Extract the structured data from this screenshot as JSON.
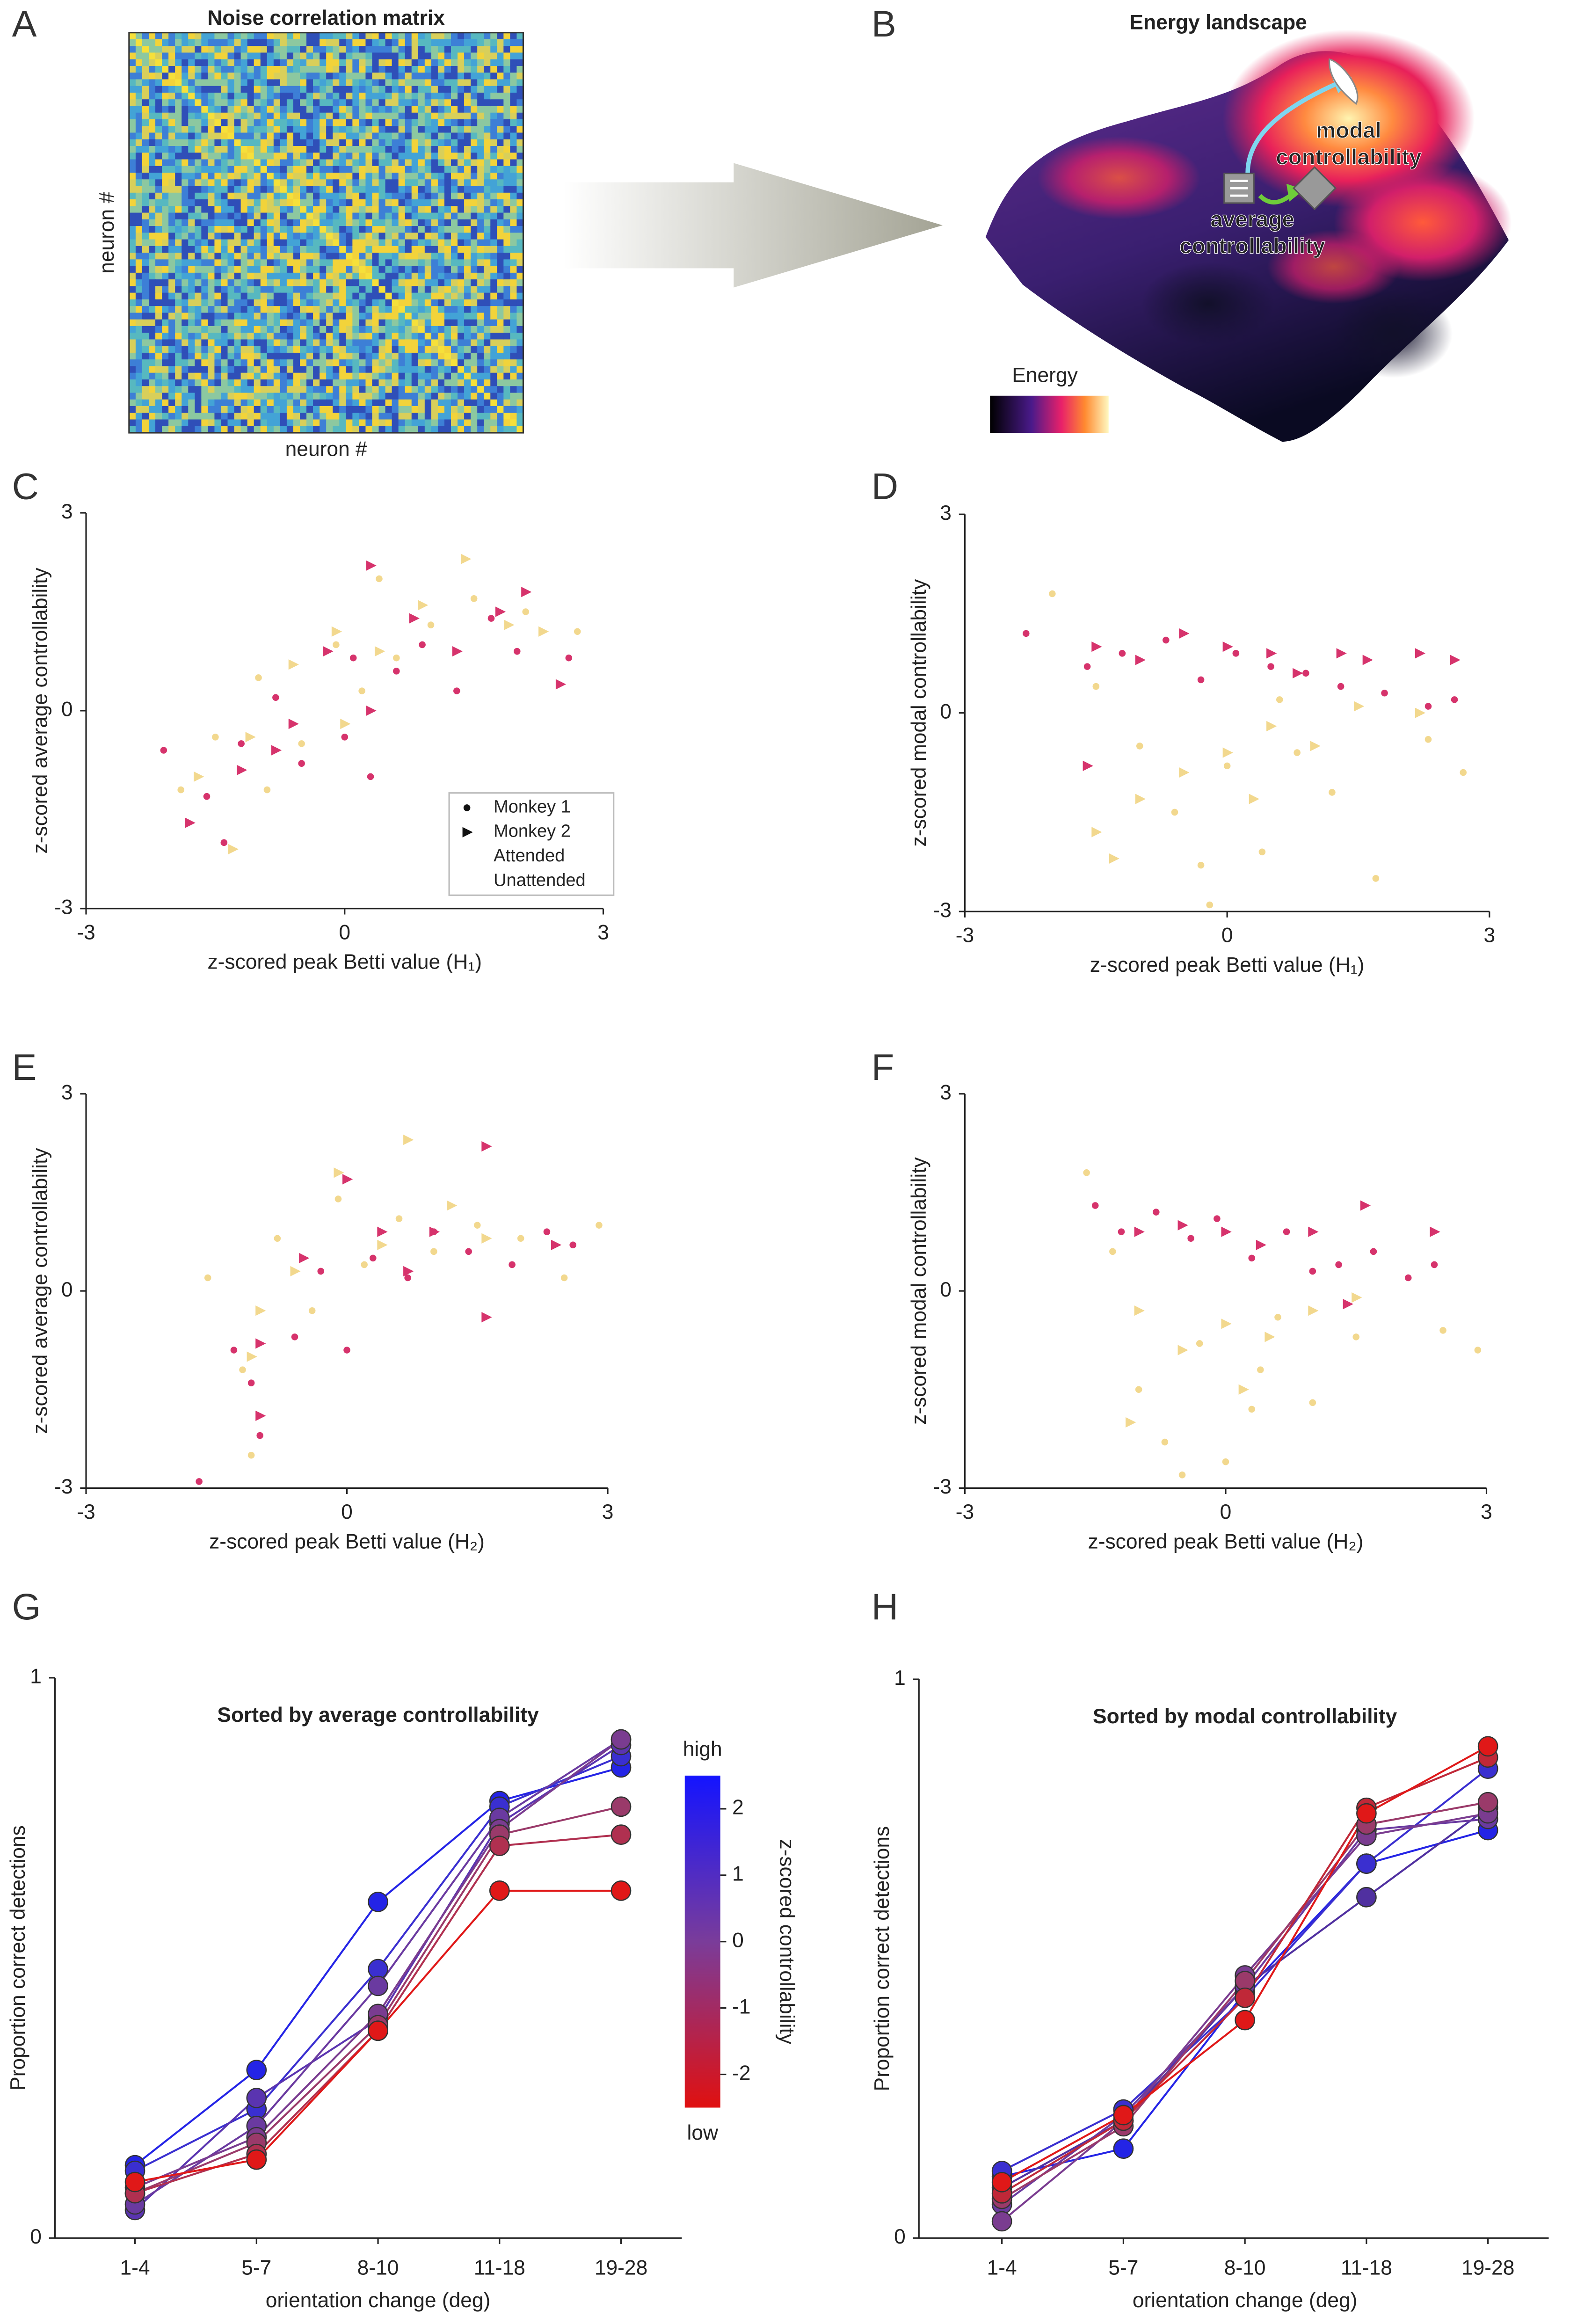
{
  "chart_data": [
    {
      "type": "heatmap",
      "panel": "A",
      "title": "Noise correlation matrix",
      "xlabel": "neuron #",
      "ylabel": "neuron #"
    },
    {
      "type": "illustration",
      "panel": "B",
      "title": "Energy landscape",
      "annotations": [
        {
          "text": "modal",
          "color": "#a9b9f2"
        },
        {
          "text": "controllability",
          "color": "#a9b9f2"
        },
        {
          "text": "average",
          "color": "#74d13a"
        },
        {
          "text": "controllability",
          "color": "#74d13a"
        }
      ],
      "colorbar_label": "Energy"
    },
    {
      "type": "scatter",
      "panel": "C",
      "xlabel": "z-scored peak Betti value (H₁)",
      "ylabel": "z-scored average controllability",
      "ylabel_color": "#6ecc3a",
      "xlim": [
        -3,
        3
      ],
      "ylim": [
        -3,
        3
      ],
      "xticks": [
        -3,
        0,
        3
      ],
      "yticks": [
        -3,
        0,
        3
      ],
      "legend": {
        "markers": [
          {
            "name": "Monkey 1",
            "marker": "circle"
          },
          {
            "name": "Monkey 2",
            "marker": "triangle"
          }
        ],
        "conditions": [
          {
            "name": "Attended",
            "color": "#d6336c"
          },
          {
            "name": "Unattended",
            "color": "#f2d88e"
          }
        ]
      },
      "series": [
        {
          "marker": "circle",
          "color": "#f2d88e",
          "x": [
            -1.9,
            -1.5,
            -1.0,
            -0.5,
            -0.1,
            0.2,
            0.6,
            1.0,
            1.5,
            2.1,
            2.7,
            -0.9,
            0.4
          ],
          "values": [
            -1.2,
            -0.4,
            0.5,
            -0.5,
            1.0,
            0.3,
            0.8,
            1.3,
            1.7,
            1.5,
            1.2,
            -1.2,
            2.0
          ]
        },
        {
          "marker": "triangle",
          "color": "#f2d88e",
          "x": [
            -1.7,
            -1.1,
            -0.6,
            -0.1,
            0.4,
            0.9,
            1.4,
            1.9,
            2.3,
            -1.3,
            0.0
          ],
          "values": [
            -1.0,
            -0.4,
            0.7,
            1.2,
            0.9,
            1.6,
            2.3,
            1.3,
            1.2,
            -2.1,
            -0.2
          ]
        },
        {
          "marker": "circle",
          "color": "#d6336c",
          "x": [
            -2.1,
            -1.6,
            -1.2,
            -0.8,
            -0.5,
            0.1,
            0.3,
            0.6,
            0.9,
            1.3,
            1.7,
            2.0,
            2.6,
            -1.4,
            0.0
          ],
          "values": [
            -0.6,
            -1.3,
            -0.5,
            0.2,
            -0.8,
            0.8,
            -1.0,
            0.6,
            1.0,
            0.3,
            1.4,
            0.9,
            0.8,
            -2.0,
            -0.4
          ]
        },
        {
          "marker": "triangle",
          "color": "#d6336c",
          "x": [
            -1.8,
            -1.2,
            -0.6,
            -0.2,
            0.3,
            0.3,
            0.8,
            1.3,
            1.8,
            2.1,
            2.5,
            -0.8
          ],
          "values": [
            -1.7,
            -0.9,
            -0.2,
            0.9,
            2.2,
            0.0,
            1.4,
            0.9,
            1.5,
            1.8,
            0.4,
            -0.6
          ]
        }
      ]
    },
    {
      "type": "scatter",
      "panel": "D",
      "xlabel": "z-scored peak Betti value (H₁)",
      "ylabel": "z-scored modal controllability",
      "ylabel_color": "#86dde8",
      "xlim": [
        -3,
        3
      ],
      "ylim": [
        -3,
        3
      ],
      "xticks": [
        -3,
        0,
        3
      ],
      "yticks": [
        -3,
        0,
        3
      ],
      "series": [
        {
          "marker": "circle",
          "color": "#f2d88e",
          "x": [
            -2.0,
            -1.5,
            -1.0,
            -0.6,
            -0.3,
            0.0,
            0.4,
            0.8,
            1.2,
            1.7,
            2.3,
            2.7,
            -0.2,
            0.6
          ],
          "values": [
            1.8,
            0.4,
            -0.5,
            -1.5,
            -2.3,
            -0.8,
            -2.1,
            -0.6,
            -1.2,
            -2.5,
            -0.4,
            -0.9,
            -2.9,
            0.2
          ]
        },
        {
          "marker": "triangle",
          "color": "#f2d88e",
          "x": [
            -1.5,
            -1.0,
            -0.5,
            0.0,
            0.5,
            1.0,
            1.5,
            2.2,
            -1.3,
            0.3
          ],
          "values": [
            -1.8,
            -1.3,
            -0.9,
            -0.6,
            -0.2,
            -0.5,
            0.1,
            0.0,
            -2.2,
            -1.3
          ]
        },
        {
          "marker": "circle",
          "color": "#d6336c",
          "x": [
            -2.3,
            -1.6,
            -1.2,
            -0.7,
            -0.3,
            0.1,
            0.5,
            0.9,
            1.3,
            1.8,
            2.3,
            2.6
          ],
          "values": [
            1.2,
            0.7,
            0.9,
            1.1,
            0.5,
            0.9,
            0.7,
            0.6,
            0.4,
            0.3,
            0.1,
            0.2
          ]
        },
        {
          "marker": "triangle",
          "color": "#d6336c",
          "x": [
            -1.5,
            -1.0,
            -0.5,
            0.0,
            0.5,
            0.8,
            1.3,
            1.6,
            2.2,
            2.6,
            -1.6
          ],
          "values": [
            1.0,
            0.8,
            1.2,
            1.0,
            0.9,
            0.6,
            0.9,
            0.8,
            0.9,
            0.8,
            -0.8
          ]
        }
      ]
    },
    {
      "type": "scatter",
      "panel": "E",
      "xlabel": "z-scored peak Betti value (H₂)",
      "ylabel": "z-scored average controllability",
      "ylabel_color": "#6ecc3a",
      "xlim": [
        -3,
        3
      ],
      "ylim": [
        -3,
        3
      ],
      "xticks": [
        -3,
        0,
        3
      ],
      "yticks": [
        -3,
        0,
        3
      ],
      "series": [
        {
          "marker": "circle",
          "color": "#f2d88e",
          "x": [
            -1.6,
            -1.2,
            -0.8,
            -0.4,
            -0.1,
            0.2,
            0.6,
            1.0,
            1.5,
            2.0,
            2.5,
            2.9,
            -1.1
          ],
          "values": [
            0.2,
            -1.2,
            0.8,
            -0.3,
            1.4,
            0.4,
            1.1,
            0.6,
            1.0,
            0.8,
            0.2,
            1.0,
            -2.5
          ]
        },
        {
          "marker": "triangle",
          "color": "#f2d88e",
          "x": [
            -1.0,
            -0.6,
            -0.1,
            0.4,
            0.7,
            1.2,
            1.6,
            -1.1
          ],
          "values": [
            -0.3,
            0.3,
            1.8,
            0.7,
            2.3,
            1.3,
            0.8,
            -1.0
          ]
        },
        {
          "marker": "circle",
          "color": "#d6336c",
          "x": [
            -1.7,
            -1.3,
            -1.0,
            -0.6,
            -0.3,
            0.0,
            0.3,
            0.7,
            1.0,
            1.4,
            1.9,
            2.3,
            2.6,
            -1.1
          ],
          "values": [
            -2.9,
            -0.9,
            -2.2,
            -0.7,
            0.3,
            -0.9,
            0.5,
            0.2,
            0.9,
            0.6,
            0.4,
            0.9,
            0.7,
            -1.4
          ]
        },
        {
          "marker": "triangle",
          "color": "#d6336c",
          "x": [
            -1.0,
            -0.5,
            0.0,
            0.4,
            0.7,
            1.0,
            1.6,
            1.6,
            2.4,
            -1.0
          ],
          "values": [
            -0.8,
            0.5,
            1.7,
            0.9,
            0.3,
            0.9,
            2.2,
            -0.4,
            0.7,
            -1.9
          ]
        }
      ]
    },
    {
      "type": "scatter",
      "panel": "F",
      "xlabel": "z-scored peak Betti value (H₂)",
      "ylabel": "z-scored modal controllability",
      "ylabel_color": "#86dde8",
      "xlim": [
        -3,
        3
      ],
      "ylim": [
        -3,
        3
      ],
      "xticks": [
        -3,
        0,
        3
      ],
      "yticks": [
        -3,
        0,
        3
      ],
      "series": [
        {
          "marker": "circle",
          "color": "#f2d88e",
          "x": [
            -1.6,
            -1.3,
            -1.0,
            -0.7,
            -0.3,
            0.0,
            0.3,
            0.6,
            1.0,
            1.5,
            2.5,
            2.9,
            -0.5,
            0.4
          ],
          "values": [
            1.8,
            0.6,
            -1.5,
            -2.3,
            -0.8,
            -2.6,
            -1.8,
            -0.4,
            -1.7,
            -0.7,
            -0.6,
            -0.9,
            -2.8,
            -1.2
          ]
        },
        {
          "marker": "triangle",
          "color": "#f2d88e",
          "x": [
            -1.0,
            -0.5,
            0.0,
            0.5,
            1.0,
            1.5,
            -1.1,
            0.2
          ],
          "values": [
            -0.3,
            -0.9,
            -0.5,
            -0.7,
            -0.3,
            -0.1,
            -2.0,
            -1.5
          ]
        },
        {
          "marker": "circle",
          "color": "#d6336c",
          "x": [
            -1.5,
            -1.2,
            -0.8,
            -0.4,
            -0.1,
            0.3,
            0.7,
            1.0,
            1.3,
            1.7,
            2.1,
            2.4
          ],
          "values": [
            1.3,
            0.9,
            1.2,
            0.8,
            1.1,
            0.5,
            0.9,
            0.3,
            0.4,
            0.6,
            0.2,
            0.4
          ]
        },
        {
          "marker": "triangle",
          "color": "#d6336c",
          "x": [
            -1.0,
            -0.5,
            0.0,
            0.4,
            1.0,
            1.6,
            2.4,
            1.4
          ],
          "values": [
            0.9,
            1.0,
            0.9,
            0.7,
            0.9,
            1.3,
            0.9,
            -0.2
          ]
        }
      ]
    },
    {
      "type": "line",
      "panel": "G",
      "subtitle": "Sorted by average controllability",
      "subtitle_color": "#6ecc1e",
      "xlabel": "orientation change (deg)",
      "ylabel": "Proportion correct detections",
      "categories": [
        "1-4",
        "5-7",
        "8-10",
        "11-18",
        "19-28"
      ],
      "ylim": [
        0,
        1
      ],
      "yticks": [
        0,
        1
      ],
      "colorbar": {
        "label": "z-scored controllability",
        "high": "high",
        "low": "low",
        "ylim": [
          -2.5,
          2.5
        ],
        "yticks": [
          -2,
          -1,
          0,
          1,
          2
        ],
        "colors": [
          "#1414ff",
          "#7a3c9a",
          "#e01010"
        ]
      },
      "series": [
        {
          "color": "#2424e6",
          "values": [
            0.13,
            0.3,
            0.6,
            0.78,
            0.84
          ]
        },
        {
          "color": "#3a2fd0",
          "values": [
            0.12,
            0.23,
            0.48,
            0.77,
            0.86
          ]
        },
        {
          "color": "#5a34b0",
          "values": [
            0.05,
            0.25,
            0.39,
            0.74,
            0.88
          ]
        },
        {
          "color": "#6a3aa0",
          "values": [
            0.06,
            0.2,
            0.45,
            0.75,
            0.89
          ]
        },
        {
          "color": "#7a3c90",
          "values": [
            0.09,
            0.18,
            0.4,
            0.73,
            0.89
          ]
        },
        {
          "color": "#9a3a6a",
          "values": [
            0.08,
            0.17,
            0.38,
            0.72,
            0.77
          ]
        },
        {
          "color": "#b03050",
          "values": [
            0.08,
            0.15,
            0.37,
            0.7,
            0.72
          ]
        },
        {
          "color": "#e01818",
          "values": [
            0.1,
            0.14,
            0.37,
            0.62,
            0.62
          ]
        }
      ]
    },
    {
      "type": "line",
      "panel": "H",
      "subtitle": "Sorted by modal controllability",
      "subtitle_color": "#86dde8",
      "xlabel": "orientation change (deg)",
      "ylabel": "Proportion correct detections",
      "categories": [
        "1-4",
        "5-7",
        "8-10",
        "11-18",
        "19-28"
      ],
      "ylim": [
        0,
        1
      ],
      "yticks": [
        0,
        1
      ],
      "series": [
        {
          "color": "#2424e6",
          "values": [
            0.11,
            0.16,
            0.44,
            0.67,
            0.73
          ]
        },
        {
          "color": "#3a2fd0",
          "values": [
            0.12,
            0.23,
            0.43,
            0.67,
            0.84
          ]
        },
        {
          "color": "#5030a0",
          "values": [
            0.09,
            0.21,
            0.45,
            0.61,
            0.77
          ]
        },
        {
          "color": "#6a3aa0",
          "values": [
            0.06,
            0.22,
            0.45,
            0.73,
            0.75
          ]
        },
        {
          "color": "#7a3c90",
          "values": [
            0.03,
            0.21,
            0.47,
            0.72,
            0.76
          ]
        },
        {
          "color": "#9a3a6a",
          "values": [
            0.07,
            0.2,
            0.46,
            0.74,
            0.78
          ]
        },
        {
          "color": "#c02838",
          "values": [
            0.08,
            0.21,
            0.43,
            0.77,
            0.86
          ]
        },
        {
          "color": "#e01818",
          "values": [
            0.1,
            0.22,
            0.39,
            0.76,
            0.88
          ]
        }
      ]
    }
  ]
}
